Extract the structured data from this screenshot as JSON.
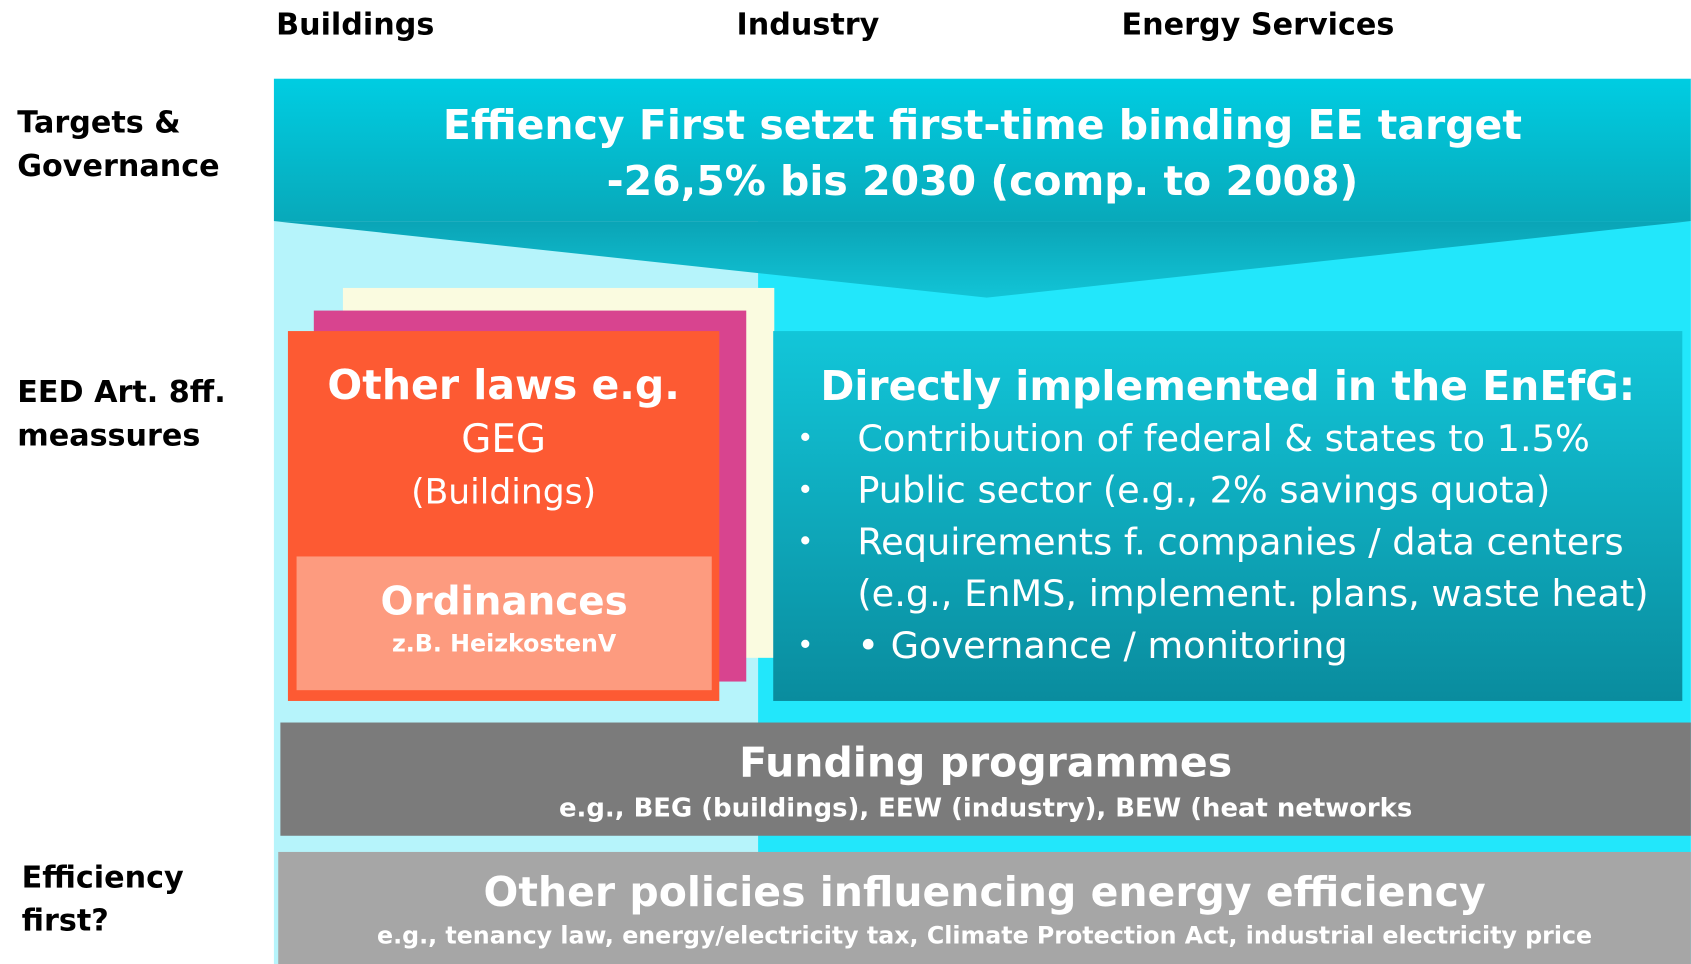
{
  "columns": [
    "Buildings",
    "Industry",
    "Energy Services"
  ],
  "rows": [
    [
      "Targets &",
      "Governance"
    ],
    [
      "EED Art. 8ff.",
      "meassures"
    ],
    [
      "Efficiency",
      "first?"
    ]
  ],
  "target": {
    "lines": [
      "Effiency First setzt first-time binding EE target",
      "-26,5% bis 2030 (comp. to 2008)"
    ]
  },
  "other_laws": {
    "title": "Other laws e.g.",
    "law": "GEG",
    "scope": "(Buildings)",
    "ordinances": {
      "title": "Ordinances",
      "example": "z.B. HeizkostenV"
    }
  },
  "direct": {
    "title": "Directly implemented in the EnEfG:",
    "items": [
      [
        "Contribution of federal & states to 1.5%"
      ],
      [
        "Public sector (e.g., 2% savings quota)"
      ],
      [
        "Requirements f. companies / data centers",
        "(e.g., EnMS, implement. plans, waste heat)"
      ],
      [
        "• Governance / monitoring"
      ]
    ]
  },
  "funding": {
    "title": "Funding programmes",
    "subtitle": "e.g., BEG (buildings), EEW (industry), BEW (heat networks"
  },
  "other_policies": {
    "title": "Other policies influencing energy efficiency",
    "subtitle": "e.g., tenancy law, energy/electricity tax, Climate Protection Act, industrial electricity price"
  }
}
